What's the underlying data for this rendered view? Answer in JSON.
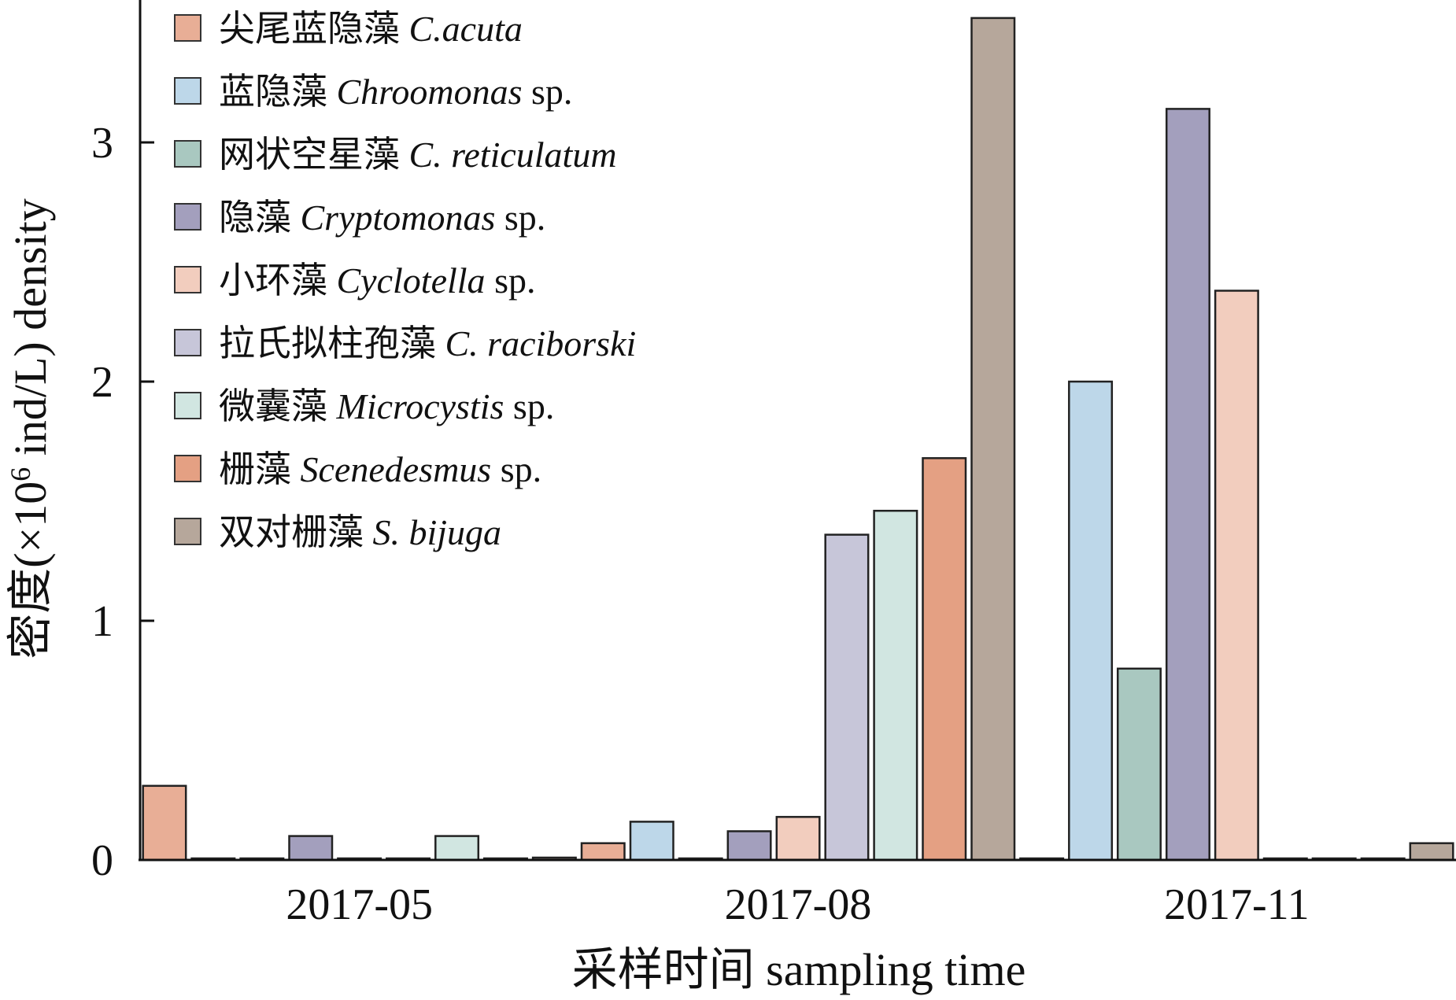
{
  "chart_data": {
    "type": "bar",
    "title": "",
    "xlabel": "采样时间 sampling time",
    "ylabel_prefix": "密度(×10",
    "ylabel_sup": "6",
    "ylabel_suffix": " ind/L) density",
    "ylim": [
      0,
      3.5
    ],
    "yticks": [
      "0",
      "1",
      "2",
      "3"
    ],
    "categories": [
      "2017-05",
      "2017-08",
      "2017-11"
    ],
    "legend_position": "top-left",
    "series": [
      {
        "name_cn": "尖尾蓝隐藻",
        "name_sci": "C.acuta",
        "name_suffix": "",
        "color": "#E8AE96",
        "values": [
          0.31,
          0.07,
          0
        ]
      },
      {
        "name_cn": "蓝隐藻",
        "name_sci": "Chroomonas",
        "name_suffix": " sp.",
        "color": "#BDD7E9",
        "values": [
          0,
          0.16,
          2.0
        ]
      },
      {
        "name_cn": "网状空星藻",
        "name_sci": "C. reticulatum",
        "name_suffix": "",
        "color": "#A9C8C0",
        "values": [
          0,
          0,
          0.8
        ]
      },
      {
        "name_cn": "隐藻",
        "name_sci": "Cryptomonas",
        "name_suffix": " sp.",
        "color": "#A39FBD",
        "values": [
          0.1,
          0.12,
          3.14
        ]
      },
      {
        "name_cn": "小环藻",
        "name_sci": "Cyclotella",
        "name_suffix": " sp.",
        "color": "#F2CDBE",
        "values": [
          0,
          0.18,
          2.38
        ]
      },
      {
        "name_cn": "拉氏拟柱孢藻",
        "name_sci": "C. raciborski",
        "name_suffix": "",
        "color": "#C7C6D9",
        "values": [
          0,
          1.36,
          0
        ]
      },
      {
        "name_cn": "微囊藻",
        "name_sci": "Microcystis",
        "name_suffix": " sp.",
        "color": "#D1E6E1",
        "values": [
          0.1,
          1.46,
          0
        ]
      },
      {
        "name_cn": "栅藻",
        "name_sci": "Scenedesmus",
        "name_suffix": " sp.",
        "color": "#E4A083",
        "values": [
          0,
          1.68,
          0
        ]
      },
      {
        "name_cn": "双对栅藻",
        "name_sci": "S. bijuga",
        "name_suffix": "",
        "color": "#B6A79B",
        "values": [
          0.01,
          3.52,
          0.07
        ]
      }
    ]
  }
}
